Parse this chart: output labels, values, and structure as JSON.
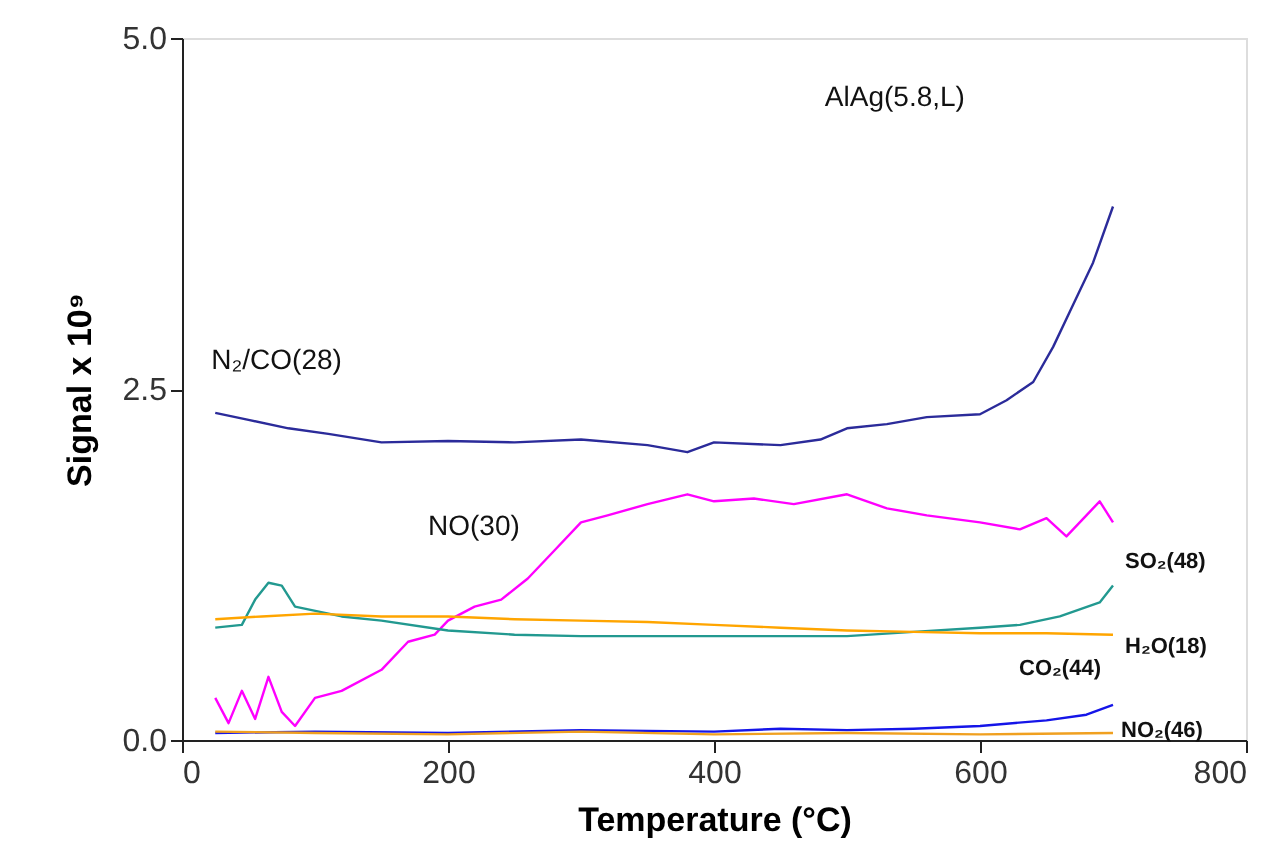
{
  "chart_data": {
    "type": "line",
    "xlabel": "Temperature (°C)",
    "ylabel": "Signal x 10⁹",
    "annotations": [
      "AlAg(5.8,L)"
    ],
    "xlim": [
      0,
      800
    ],
    "xticks": [
      0,
      200,
      400,
      600,
      800
    ],
    "ylim": [
      0,
      5
    ],
    "yticks": [
      {
        "value": 0,
        "label": "0.0"
      },
      {
        "value": 2.5,
        "label": "2.5"
      },
      {
        "value": 5,
        "label": "5.0"
      }
    ],
    "marker": "none",
    "line_style": "solid",
    "series": [
      {
        "name": "N₂/CO(28)",
        "color": "#2b2b9a",
        "x": [
          25,
          50,
          80,
          110,
          150,
          200,
          250,
          300,
          350,
          380,
          400,
          450,
          480,
          500,
          530,
          560,
          600,
          620,
          640,
          655,
          670,
          685,
          700
        ],
        "values": [
          2.33,
          2.28,
          2.22,
          2.18,
          2.12,
          2.13,
          2.12,
          2.14,
          2.1,
          2.05,
          2.12,
          2.1,
          2.14,
          2.22,
          2.25,
          2.3,
          2.32,
          2.42,
          2.55,
          2.8,
          3.1,
          3.4,
          3.8
        ]
      },
      {
        "name": "NO(30)",
        "color": "#ff00ff",
        "x": [
          25,
          35,
          45,
          55,
          65,
          75,
          85,
          100,
          120,
          150,
          170,
          190,
          200,
          220,
          240,
          260,
          280,
          300,
          320,
          350,
          380,
          400,
          430,
          460,
          500,
          530,
          560,
          600,
          630,
          650,
          665,
          680,
          690,
          700
        ],
        "values": [
          0.3,
          0.12,
          0.35,
          0.15,
          0.45,
          0.2,
          0.1,
          0.3,
          0.35,
          0.5,
          0.7,
          0.75,
          0.85,
          0.95,
          1.0,
          1.15,
          1.35,
          1.55,
          1.6,
          1.68,
          1.75,
          1.7,
          1.72,
          1.68,
          1.75,
          1.65,
          1.6,
          1.55,
          1.5,
          1.58,
          1.45,
          1.6,
          1.7,
          1.55
        ]
      },
      {
        "name": "SO₂(48)",
        "color": "#229990",
        "x": [
          25,
          45,
          55,
          65,
          75,
          85,
          120,
          150,
          200,
          250,
          300,
          400,
          500,
          550,
          600,
          630,
          660,
          690,
          700
        ],
        "values": [
          0.8,
          0.82,
          1.0,
          1.12,
          1.1,
          0.95,
          0.88,
          0.85,
          0.78,
          0.75,
          0.74,
          0.74,
          0.74,
          0.77,
          0.8,
          0.82,
          0.88,
          0.98,
          1.1
        ]
      },
      {
        "name": "H₂O(18)",
        "color": "#ffa500",
        "x": [
          25,
          60,
          100,
          150,
          200,
          250,
          300,
          350,
          400,
          450,
          500,
          550,
          600,
          650,
          700
        ],
        "values": [
          0.86,
          0.88,
          0.9,
          0.88,
          0.88,
          0.86,
          0.85,
          0.84,
          0.82,
          0.8,
          0.78,
          0.77,
          0.76,
          0.76,
          0.75
        ]
      },
      {
        "name": "CO₂(44)",
        "color": "#1515e8",
        "x": [
          25,
          100,
          200,
          300,
          400,
          450,
          500,
          550,
          600,
          650,
          680,
          700
        ],
        "values": [
          0.05,
          0.06,
          0.05,
          0.07,
          0.06,
          0.08,
          0.07,
          0.08,
          0.1,
          0.14,
          0.18,
          0.25
        ]
      },
      {
        "name": "NO₂(46)",
        "color": "#f0a020",
        "x": [
          25,
          100,
          200,
          300,
          400,
          500,
          600,
          700
        ],
        "values": [
          0.06,
          0.05,
          0.04,
          0.06,
          0.04,
          0.05,
          0.04,
          0.05
        ]
      }
    ]
  }
}
